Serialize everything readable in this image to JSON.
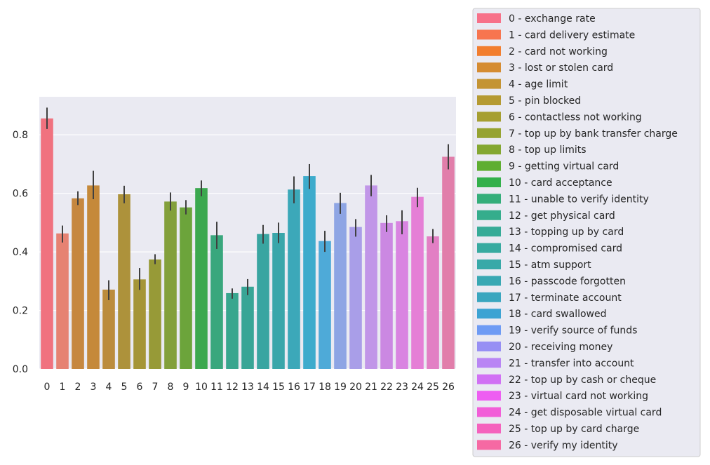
{
  "chart_data": {
    "type": "bar",
    "title": "",
    "xlabel": "",
    "ylabel": "",
    "ylim": [
      0,
      0.93
    ],
    "yticks": [
      "0.0",
      "0.2",
      "0.4",
      "0.6",
      "0.8"
    ],
    "ytick_values": [
      0.0,
      0.2,
      0.4,
      0.6,
      0.8
    ],
    "grid": true,
    "legend_position": "right",
    "categories": [
      "0",
      "1",
      "2",
      "3",
      "4",
      "5",
      "6",
      "7",
      "8",
      "9",
      "10",
      "11",
      "12",
      "13",
      "14",
      "15",
      "16",
      "17",
      "18",
      "19",
      "20",
      "21",
      "22",
      "23",
      "24",
      "25",
      "26"
    ],
    "values": [
      0.856,
      0.463,
      0.583,
      0.627,
      0.271,
      0.597,
      0.306,
      0.374,
      0.572,
      0.552,
      0.618,
      0.457,
      0.259,
      0.281,
      0.461,
      0.465,
      0.613,
      0.659,
      0.437,
      0.567,
      0.485,
      0.627,
      0.499,
      0.505,
      0.588,
      0.453,
      0.725
    ],
    "error_low": [
      0.82,
      0.432,
      0.56,
      0.58,
      0.235,
      0.566,
      0.27,
      0.358,
      0.541,
      0.528,
      0.59,
      0.41,
      0.24,
      0.252,
      0.428,
      0.43,
      0.566,
      0.615,
      0.4,
      0.53,
      0.452,
      0.59,
      0.468,
      0.46,
      0.553,
      0.43,
      0.682
    ],
    "error_high": [
      0.893,
      0.49,
      0.607,
      0.677,
      0.303,
      0.626,
      0.345,
      0.392,
      0.603,
      0.577,
      0.644,
      0.503,
      0.275,
      0.307,
      0.492,
      0.5,
      0.658,
      0.7,
      0.472,
      0.602,
      0.512,
      0.663,
      0.525,
      0.542,
      0.619,
      0.478,
      0.768
    ],
    "colors": [
      "#f0727f",
      "#e68272",
      "#c6873f",
      "#c5893a",
      "#bb8c3d",
      "#ad923b",
      "#a59537",
      "#979a37",
      "#83a03b",
      "#6ca43b",
      "#3ba84f",
      "#39a77d",
      "#38a68e",
      "#38a596",
      "#39a5a1",
      "#3aa6aa",
      "#3ca8b9",
      "#3dabcc",
      "#4eaad8",
      "#8ea5e4",
      "#a99ee8",
      "#c196e8",
      "#cb88e2",
      "#d984e1",
      "#e57fd6",
      "#e27fc4",
      "#e17eaa"
    ],
    "legend": [
      "0 - exchange rate",
      "1 - card delivery estimate",
      "2 - card not working",
      "3 - lost or stolen card",
      "4 - age limit",
      "5 - pin blocked",
      "6 - contactless not working",
      "7 - top up by bank transfer charge",
      "8 - top up limits",
      "9 - getting virtual card",
      "10 - card acceptance",
      "11 - unable to verify identity",
      "12 - get physical card",
      "13 - topping up by card",
      "14 - compromised card",
      "15 - atm support",
      "16 - passcode forgotten",
      "17 - terminate account",
      "18 - card swallowed",
      "19 - verify source of funds",
      "20 - receiving money",
      "21 - transfer into account",
      "22 - top up by cash or cheque",
      "23 - virtual card not working",
      "24 - get disposable virtual card",
      "25 - top up by card charge",
      "26 - verify my identity"
    ],
    "legend_colors": [
      "#f77189",
      "#f7754f",
      "#f27e2f",
      "#d58c32",
      "#c49433",
      "#b59a32",
      "#a69f31",
      "#96a331",
      "#84a731",
      "#5fae31",
      "#33b04b",
      "#34ae7a",
      "#35ad8c",
      "#36ab97",
      "#37aaa0",
      "#38a9a8",
      "#39a8b3",
      "#3aa6bf",
      "#3ca3d3",
      "#6e9bf4",
      "#978ff4",
      "#b985f4",
      "#d171f4",
      "#ee5ef2",
      "#f25ed8",
      "#f562bd",
      "#f669a3"
    ]
  }
}
